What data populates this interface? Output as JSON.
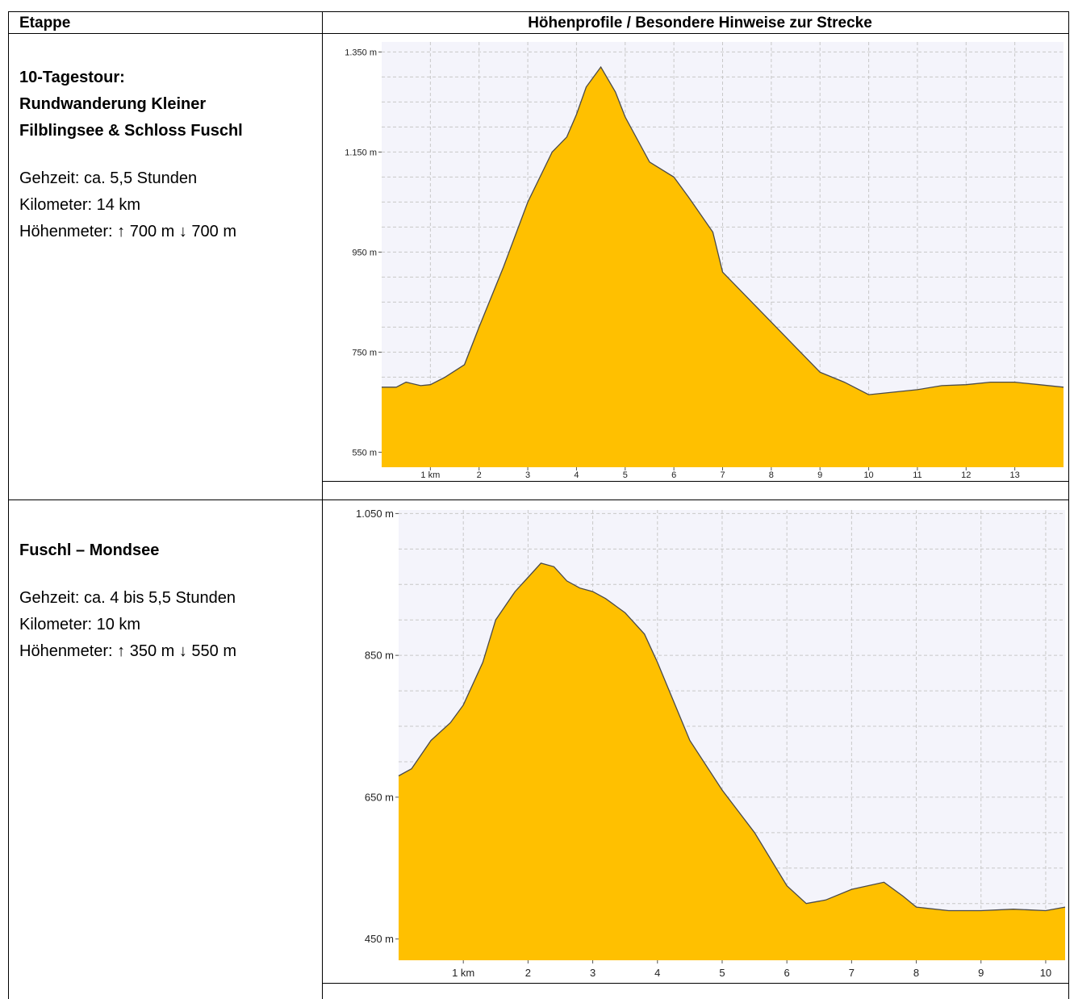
{
  "table": {
    "header_stage": "Etappe",
    "header_profile": "Höhenprofile / Besondere Hinweise zur Strecke"
  },
  "stages": [
    {
      "title_lines": [
        "10-Tagestour:",
        "Rundwanderung Kleiner",
        "Filblingsee & Schloss Fuschl"
      ],
      "walk_time": "Gehzeit: ca. 5,5 Stunden",
      "distance": "Kilometer: 14 km",
      "elevation": "Höhenmeter: ↑ 700 m ↓ 700 m"
    },
    {
      "title_lines": [
        "Fuschl – Mondsee"
      ],
      "walk_time": "Gehzeit: ca. 4 bis 5,5 Stunden",
      "distance": "Kilometer: 10 km",
      "elevation": "Höhenmeter: ↑ 350 m ↓ 550 m"
    }
  ],
  "chart_data": [
    {
      "type": "area",
      "fill_color": "#FFC000",
      "line_color": "#4a4a4a",
      "grid": true,
      "xlim": [
        0,
        14
      ],
      "ylim": [
        520,
        1370
      ],
      "y_ticks": [
        550,
        750,
        950,
        1150,
        1350
      ],
      "y_tick_labels": [
        "550 m",
        "750 m",
        "950 m",
        "1.150 m",
        "1.350 m"
      ],
      "x_ticks": [
        1,
        2,
        3,
        4,
        5,
        6,
        7,
        8,
        9,
        10,
        11,
        12,
        13
      ],
      "x_tick_labels": [
        "1 km",
        "2",
        "3",
        "4",
        "5",
        "6",
        "7",
        "8",
        "9",
        "10",
        "11",
        "12",
        "13"
      ],
      "x": [
        0,
        0.3,
        0.5,
        0.8,
        1.0,
        1.3,
        1.7,
        2.0,
        2.5,
        3.0,
        3.5,
        3.8,
        4.0,
        4.2,
        4.5,
        4.8,
        5.0,
        5.5,
        6.0,
        6.3,
        6.8,
        7.0,
        7.5,
        8.0,
        8.5,
        9.0,
        9.5,
        10.0,
        10.5,
        11.0,
        11.5,
        12.0,
        12.5,
        13.0,
        13.5,
        14.0
      ],
      "values": [
        680,
        680,
        690,
        683,
        685,
        700,
        725,
        800,
        920,
        1050,
        1150,
        1180,
        1225,
        1280,
        1320,
        1270,
        1220,
        1130,
        1100,
        1060,
        990,
        910,
        860,
        810,
        760,
        710,
        690,
        665,
        670,
        675,
        683,
        685,
        690,
        690,
        685,
        680
      ]
    },
    {
      "type": "area",
      "fill_color": "#FFC000",
      "line_color": "#4a4a4a",
      "grid": true,
      "xlim": [
        0,
        10.3
      ],
      "ylim": [
        420,
        1055
      ],
      "y_ticks": [
        450,
        650,
        850,
        1050
      ],
      "y_tick_labels": [
        "450 m",
        "650 m",
        "850 m",
        "1.050 m"
      ],
      "x_ticks": [
        1,
        2,
        3,
        4,
        5,
        6,
        7,
        8,
        9,
        10
      ],
      "x_tick_labels": [
        "1 km",
        "2",
        "3",
        "4",
        "5",
        "6",
        "7",
        "8",
        "9",
        "10"
      ],
      "x": [
        0,
        0.2,
        0.5,
        0.8,
        1.0,
        1.3,
        1.5,
        1.8,
        2.0,
        2.2,
        2.4,
        2.6,
        2.8,
        3.0,
        3.2,
        3.5,
        3.8,
        4.0,
        4.5,
        5.0,
        5.5,
        6.0,
        6.3,
        6.6,
        7.0,
        7.5,
        7.8,
        8.0,
        8.5,
        9.0,
        9.5,
        10.0,
        10.3
      ],
      "values": [
        680,
        690,
        730,
        755,
        780,
        840,
        900,
        940,
        960,
        980,
        975,
        955,
        945,
        940,
        930,
        910,
        880,
        840,
        730,
        660,
        600,
        525,
        500,
        505,
        520,
        530,
        510,
        495,
        490,
        490,
        492,
        490,
        495
      ]
    }
  ]
}
